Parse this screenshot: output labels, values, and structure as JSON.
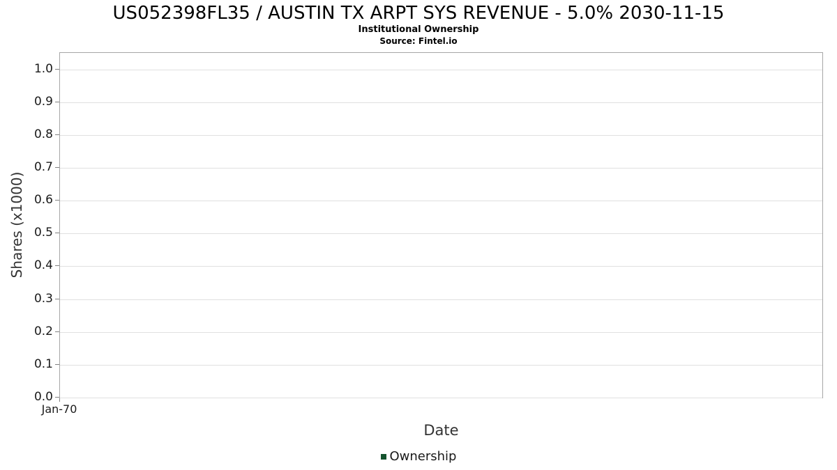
{
  "chart_data": {
    "type": "line",
    "title": "US052398FL35 / AUSTIN TX ARPT SYS REVENUE - 5.0% 2030-11-15",
    "subtitle": "Institutional Ownership",
    "source": "Source: Fintel.io",
    "xlabel": "Date",
    "ylabel": "Shares (x1000)",
    "x_ticks": [
      "Jan-70"
    ],
    "x_tick_positions": [
      0.0
    ],
    "y_ticks": [
      0.0,
      0.1,
      0.2,
      0.3,
      0.4,
      0.5,
      0.6,
      0.7,
      0.8,
      0.9,
      1.0
    ],
    "ylim": [
      0.0,
      1.05
    ],
    "grid": "horizontal",
    "legend_position": "bottom",
    "series": [
      {
        "name": "Ownership",
        "color": "#14532d",
        "x": [],
        "values": []
      }
    ]
  },
  "colors": {
    "gridline": "#e0e0e0",
    "plot_border": "#a6a6a6",
    "tick": "#808080",
    "legend_swatch": "#14532d"
  }
}
